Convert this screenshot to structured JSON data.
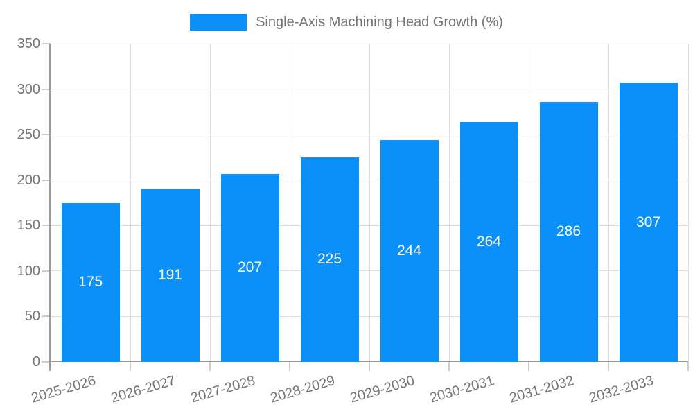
{
  "chart_data": {
    "type": "bar",
    "title": "Single-Axis Machining Head Growth (%)",
    "categories": [
      "2025-2026",
      "2026-2027",
      "2027-2028",
      "2028-2029",
      "2029-2030",
      "2030-2031",
      "2031-2032",
      "2032-2033"
    ],
    "values": [
      175,
      191,
      207,
      225,
      244,
      264,
      286,
      307
    ],
    "xlabel": "",
    "ylabel": "",
    "ylim": [
      0,
      350
    ],
    "yticks": [
      0,
      50,
      100,
      150,
      200,
      250,
      300,
      350
    ],
    "grid": true,
    "legend_position": "top-center",
    "colors": {
      "bar": "#0a90f8",
      "grid": "#dcdcdc",
      "axis": "#9a9a9a",
      "tick": "#cccccc",
      "tick_label": "#757575",
      "value_label": "#ffffff"
    }
  }
}
